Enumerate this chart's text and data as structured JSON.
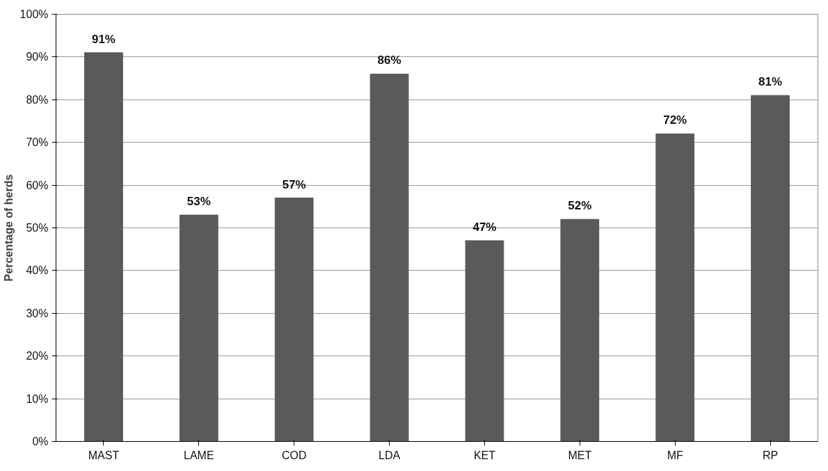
{
  "chart_data": {
    "type": "bar",
    "ylabel": "Percentage of herds",
    "categories": [
      "MAST",
      "LAME",
      "COD",
      "LDA",
      "KET",
      "MET",
      "MF",
      "RP"
    ],
    "values": [
      91,
      53,
      57,
      86,
      47,
      52,
      72,
      81
    ],
    "value_labels": [
      "91%",
      "53%",
      "57%",
      "86%",
      "47%",
      "52%",
      "72%",
      "81%"
    ],
    "color": "#5a5a5a",
    "ylim": [
      0,
      100
    ],
    "yticks": [
      {
        "value": 0,
        "label": "0%"
      },
      {
        "value": 10,
        "label": "10%"
      },
      {
        "value": 20,
        "label": "20%"
      },
      {
        "value": 30,
        "label": "30%"
      },
      {
        "value": 40,
        "label": "40%"
      },
      {
        "value": 50,
        "label": "50%"
      },
      {
        "value": 60,
        "label": "60%"
      },
      {
        "value": 70,
        "label": "70%"
      },
      {
        "value": 80,
        "label": "80%"
      },
      {
        "value": 90,
        "label": "90%"
      },
      {
        "value": 100,
        "label": "100%"
      }
    ],
    "grid": "y"
  }
}
